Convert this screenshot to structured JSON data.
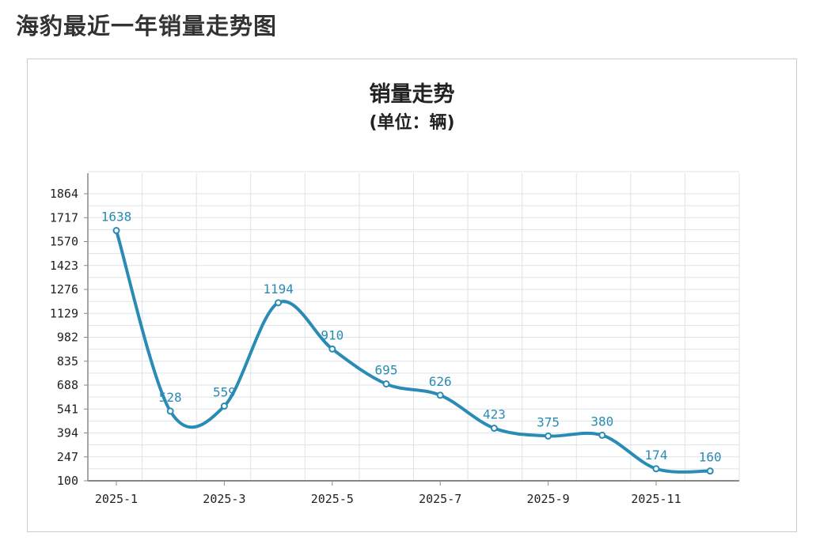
{
  "page": {
    "title": "海豹最近一年销量走势图"
  },
  "chart_data": {
    "type": "line",
    "title": "销量走势",
    "subtitle": "(单位：辆)",
    "xlabel": "",
    "ylabel": "",
    "x_tick_labels": [
      "2025-1",
      "2025-3",
      "2025-5",
      "2025-7",
      "2025-9",
      "2025-11"
    ],
    "y_ticks": [
      100,
      247,
      394,
      541,
      688,
      835,
      982,
      1129,
      1276,
      1423,
      1570,
      1717,
      1864
    ],
    "ylim": [
      100,
      1864
    ],
    "series": [
      {
        "x": [
          1,
          2,
          3,
          4,
          5,
          6,
          7,
          8,
          9,
          10,
          11,
          12
        ],
        "values": [
          1638,
          528,
          559,
          1194,
          910,
          695,
          626,
          423,
          375,
          380,
          174,
          160
        ]
      }
    ],
    "grid": true,
    "legend": "none",
    "colors": {
      "line": "#2a8bb5",
      "grid": "#dde3e8",
      "axis": "#888888"
    }
  }
}
